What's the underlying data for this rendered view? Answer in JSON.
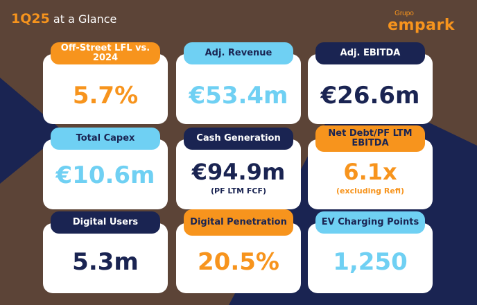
{
  "header": {
    "title_highlight": "1Q25",
    "title_rest": "at a Glance"
  },
  "logo": {
    "small": "Grupo",
    "big": "empark"
  },
  "colors": {
    "background": "#5c4437",
    "orange": "#f7941d",
    "light_blue": "#6fd0f3",
    "navy": "#1a2452",
    "card": "#ffffff"
  },
  "cards": [
    {
      "label": "Off-Street LFL vs. 2024",
      "value": "5.7%"
    },
    {
      "label": "Adj. Revenue",
      "value": "€53.4m"
    },
    {
      "label": "Adj. EBITDA",
      "value": "€26.6m"
    },
    {
      "label": "Total Capex",
      "value": "€10.6m"
    },
    {
      "label": "Cash Generation",
      "value": "€94.9m",
      "note": "(PF LTM FCF)"
    },
    {
      "label": "Net Debt/PF LTM EBITDA",
      "value": "6.1x",
      "note": "(excluding Refi)"
    },
    {
      "label": "Digital Users",
      "value": "5.3m"
    },
    {
      "label": "Digital Penetration",
      "value": "20.5%"
    },
    {
      "label": "EV Charging Points",
      "value": "1,250"
    }
  ]
}
